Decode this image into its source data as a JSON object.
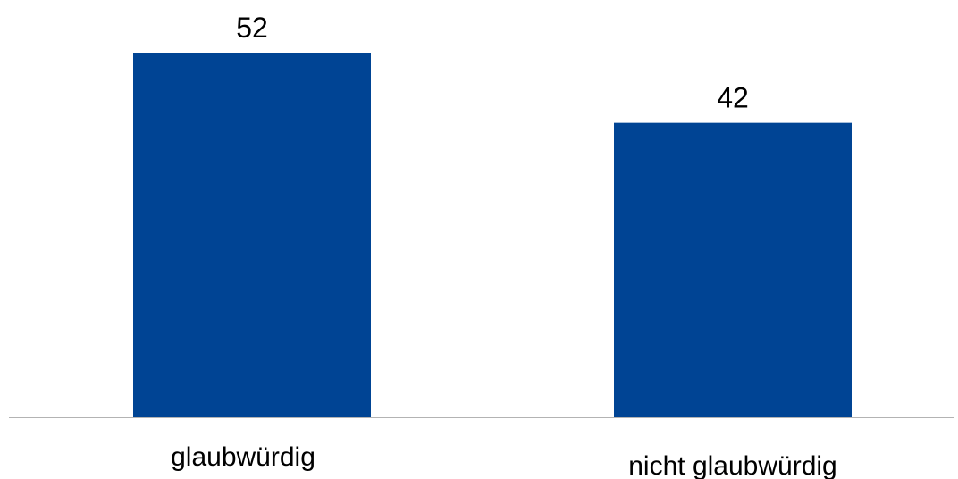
{
  "chart_data": {
    "type": "bar",
    "categories": [
      "glaubwürdig",
      "nicht glaubwürdig"
    ],
    "values": [
      52,
      42
    ],
    "title": "",
    "xlabel": "",
    "ylabel": "",
    "ylim": [
      0,
      52
    ],
    "grid": false,
    "legend": "none",
    "data_labels": [
      "52",
      "42"
    ],
    "bar_color": "#004494",
    "axis_color": "#b3b3b3"
  }
}
